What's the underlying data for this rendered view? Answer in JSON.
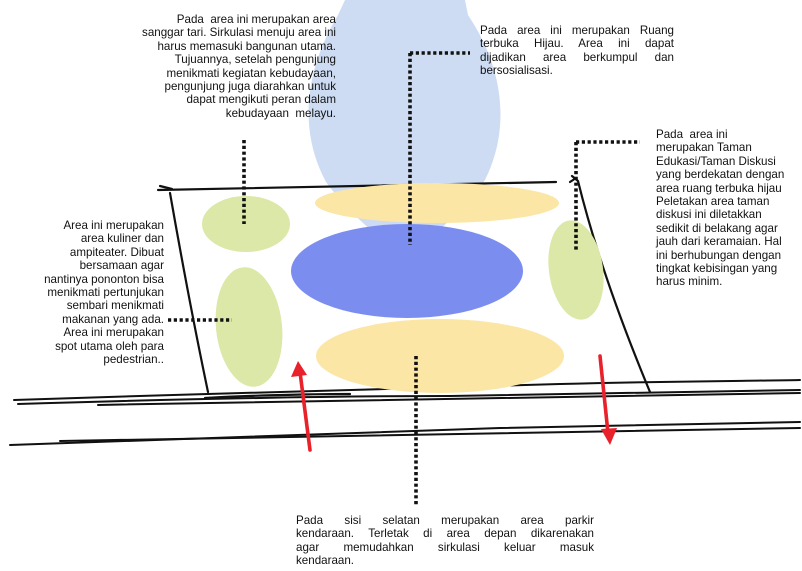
{
  "colors": {
    "beam": "#c8d8f2",
    "green_zone": "#dbe8a8",
    "yellow_zone": "#fbe6a6",
    "blue_zone": "#7b8ef0",
    "arrow": "#e8212a",
    "line": "#111111"
  },
  "notes": {
    "sanggar": {
      "lines": [
        "Pada  area ini merupakan area",
        "sanggar tari. Sirkulasi menuju area ini",
        "harus memasuki bangunan utama.",
        "Tujuannya, setelah pengunjung",
        "menikmati kegiatan kebudayaan,",
        "pengunjung juga diarahkan untuk",
        "dapat mengikuti peran dalam",
        "kebudayaan  melayu."
      ]
    },
    "rth": {
      "lines": [
        "Pada  area ini merupakan Ruang",
        "terbuka  Hijau.  Area  ini  dapat",
        "dijadikan  area  berkumpul  dan",
        "bersosialisasi."
      ]
    },
    "taman": {
      "lines": [
        "Pada  area ini",
        "merupakan Taman",
        "Edukasi/Taman Diskusi",
        "yang berdekatan dengan",
        "area ruang terbuka hijau",
        "Peletakan area taman",
        "diskusi ini diletakkan",
        "sedikit di belakang agar",
        "jauh dari keramaian. Hal",
        "ini berhubungan dengan",
        "tingkat kebisingan yang",
        "harus minim."
      ]
    },
    "kuliner": {
      "lines": [
        "Area ini merupakan",
        "area kuliner dan",
        "ampiteater. Dibuat",
        "bersamaan agar",
        "nantinya pononton bisa",
        "menikmati pertunjukan",
        "sembari menikmati",
        "makanan yang ada.",
        "Area ini merupakan",
        "spot utama oleh para",
        "pedestrian.."
      ]
    },
    "parkir": {
      "lines": [
        "Pada    sisi    selatan    merupakan    area    parkir",
        "kendaraan.  Terletak  di  area  depan  dikarenakan",
        "agar    memudahkan    sirkulasi    keluar    masuk",
        "kendaraan."
      ]
    }
  }
}
